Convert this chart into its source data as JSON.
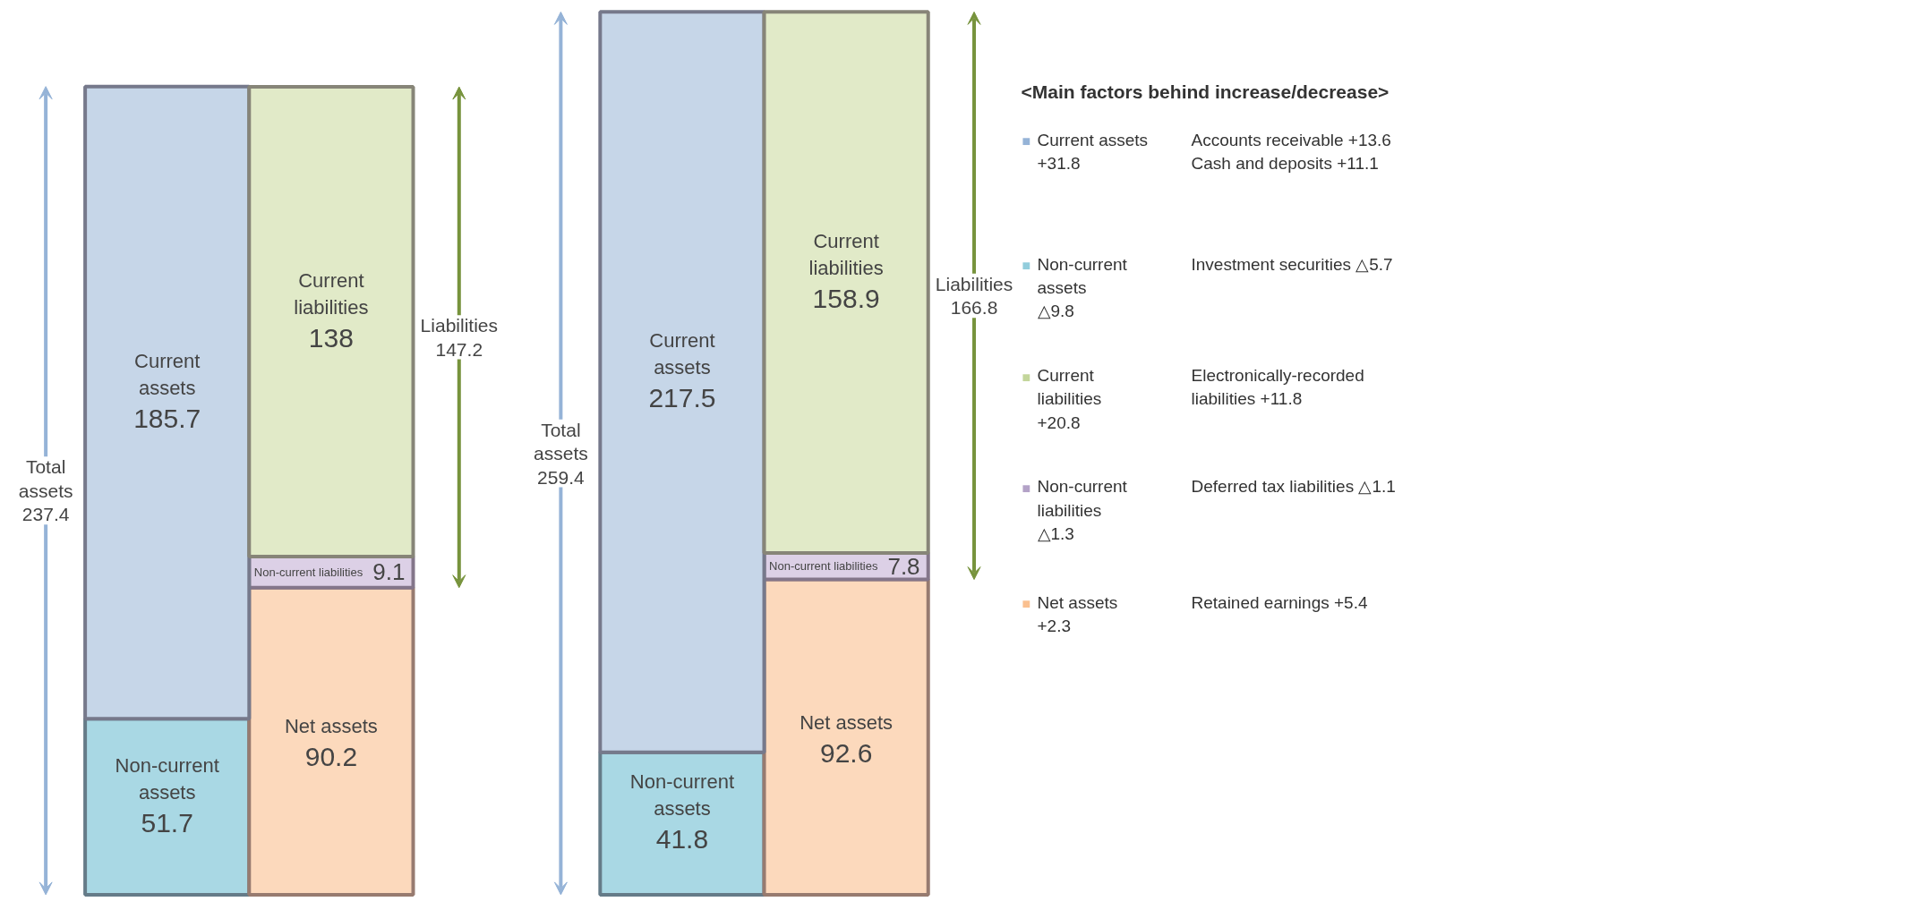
{
  "chart_data": [
    {
      "type": "bar",
      "stacked": true,
      "data_labels": true,
      "categories": [
        null,
        null,
        null,
        null
      ],
      "series": [
        {
          "name": "Non-current assets",
          "color": "#a9d8e4",
          "values": [
            51.7,
            null,
            41.8,
            null
          ]
        },
        {
          "name": "Net assets",
          "color": "#fcd9bc",
          "values": [
            null,
            90.2,
            null,
            92.6
          ]
        },
        {
          "name": "Non-current liabilities",
          "color": "#dcd0e6",
          "values": [
            null,
            9.1,
            null,
            7.8
          ]
        },
        {
          "name": "Current assets",
          "color": "#c6d6e8",
          "values": [
            185.7,
            null,
            217.5,
            null
          ]
        },
        {
          "name": "Current liabilities",
          "color": "#e1eac8",
          "values": [
            null,
            138,
            null,
            158.9
          ]
        }
      ],
      "annotations": [
        "Total\nassets\n237.4",
        "Liabilities\n147.2",
        "Total\nassets\n259.4",
        "Liabilities\n166.8"
      ]
    },
    {
      "type": "other",
      "title": "<Main factors behind increase/decrease>",
      "colors": [
        "#95b3d7",
        "#92cddc",
        "#c3d69b",
        "#b3a2c7",
        "#fac090"
      ],
      "annotations": [
        "■",
        "Current assets\n+31.8",
        "Accounts receivable +13.6\nCash and deposits +11.1",
        "■",
        "Non-current\nassets\n△9.8",
        "Investment securities △5.7",
        "■",
        "Current\nliabilities\n+20.8",
        "Electronically-recorded\nliabilities +11.8",
        "■",
        "Non-current\nliabilities\n△1.3",
        "Deferred tax liabilities △1.1",
        "■",
        "Net assets\n+2.3",
        "Retained earnings +5.4"
      ]
    }
  ]
}
